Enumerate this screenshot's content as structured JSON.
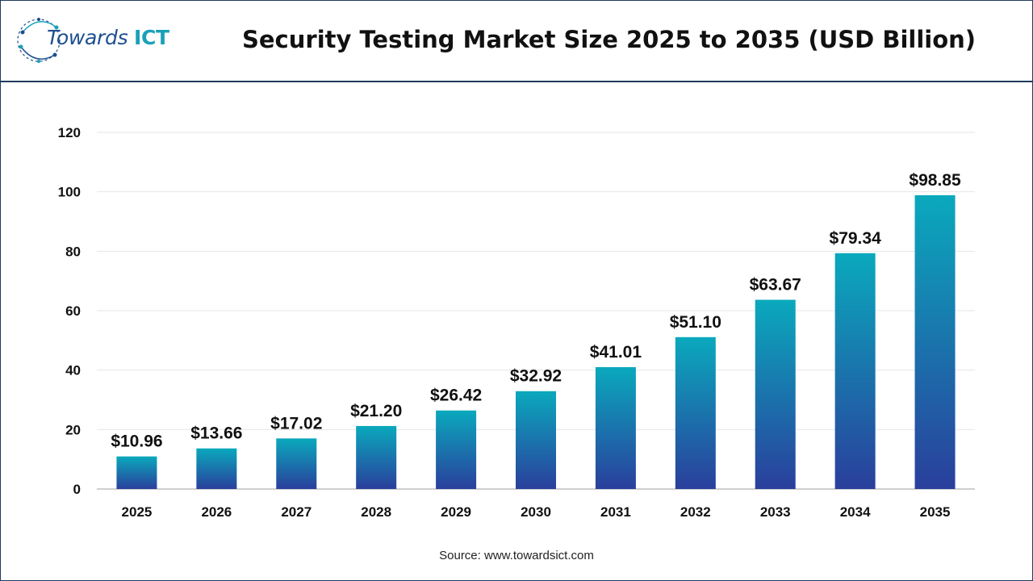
{
  "header": {
    "logo_word": "Towards",
    "logo_brand": "ICT",
    "title": "Security Testing Market Size 2025 to 2035 (USD Billion)"
  },
  "source": "Source: www.towardsict.com",
  "colors": {
    "bar_top": "#0aa9bd",
    "bar_bottom": "#2a3f9c",
    "frame": "#1f3a5f",
    "logo_blue": "#1e4f8f",
    "logo_teal": "#1aa0b8"
  },
  "chart_data": {
    "type": "bar",
    "categories": [
      "2025",
      "2026",
      "2027",
      "2028",
      "2029",
      "2030",
      "2031",
      "2032",
      "2033",
      "2034",
      "2035"
    ],
    "values": [
      10.96,
      13.66,
      17.02,
      21.2,
      26.42,
      32.92,
      41.01,
      51.1,
      63.67,
      79.34,
      98.85
    ],
    "data_labels": [
      "$10.96",
      "$13.66",
      "$17.02",
      "$21.20",
      "$26.42",
      "$32.92",
      "$41.01",
      "$51.10",
      "$63.67",
      "$79.34",
      "$98.85"
    ],
    "y_ticks": [
      "0",
      "20",
      "40",
      "60",
      "80",
      "100",
      "120"
    ],
    "ylim": [
      0,
      120
    ],
    "grid": true,
    "legend": "none"
  }
}
